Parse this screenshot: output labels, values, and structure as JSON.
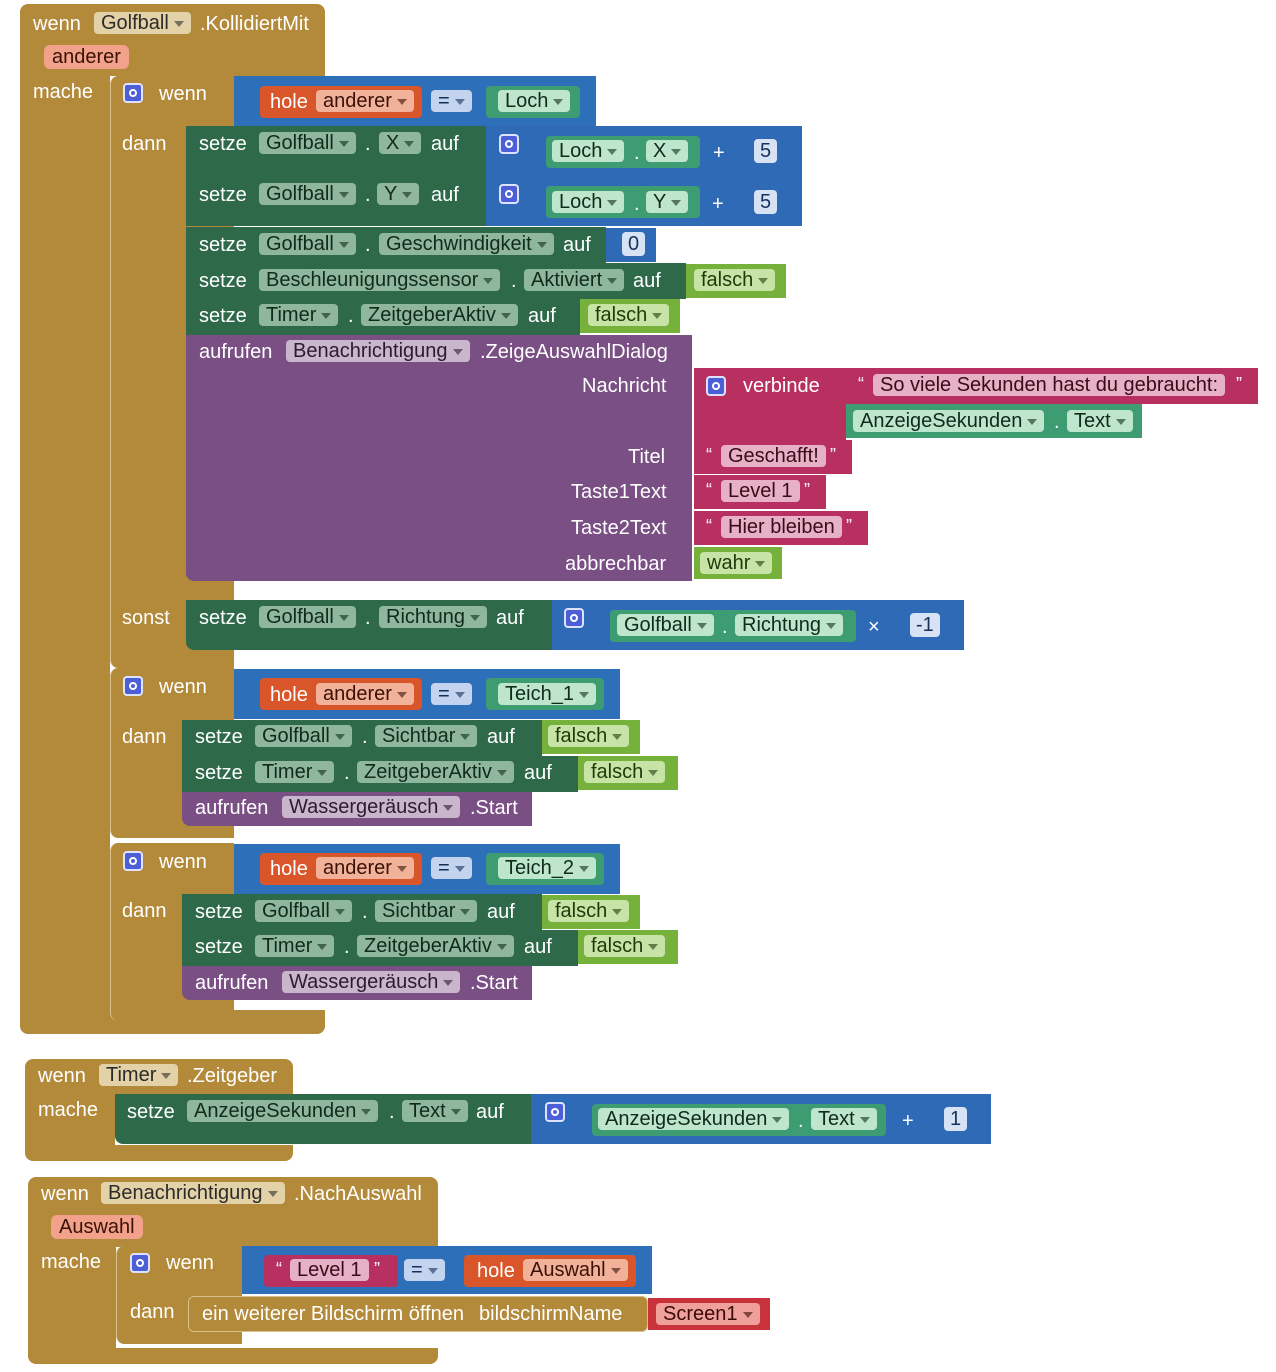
{
  "event1": {
    "wenn": "wenn",
    "component": "Golfball",
    "event": ".KollidiertMit",
    "param": "anderer",
    "mache": "mache",
    "if1": {
      "wenn": "wenn",
      "dann": "dann",
      "sonst": "sonst",
      "hole": "hole",
      "var": "anderer",
      "op": "=",
      "target": "Loch",
      "setX": {
        "setze": "setze",
        "comp": "Golfball",
        "dot": ".",
        "prop": "X",
        "auf": "auf",
        "getComp": "Loch",
        "getProp": "X",
        "plus": "+",
        "num": "5"
      },
      "setY": {
        "setze": "setze",
        "comp": "Golfball",
        "dot": ".",
        "prop": "Y",
        "auf": "auf",
        "getComp": "Loch",
        "getProp": "Y",
        "plus": "+",
        "num": "5"
      },
      "setSpeed": {
        "setze": "setze",
        "comp": "Golfball",
        "dot": ".",
        "prop": "Geschwindigkeit",
        "auf": "auf",
        "num": "0"
      },
      "setSensor": {
        "setze": "setze",
        "comp": "Beschleunigungssensor",
        "dot": ".",
        "prop": "Aktiviert",
        "auf": "auf",
        "value": "falsch"
      },
      "setTimer": {
        "setze": "setze",
        "comp": "Timer",
        "dot": ".",
        "prop": "ZeitgeberAktiv",
        "auf": "auf",
        "value": "falsch"
      },
      "call": {
        "aufrufen": "aufrufen",
        "comp": "Benachrichtigung",
        "method": ".ZeigeAuswahlDialog",
        "nachricht": "Nachricht",
        "verbinde": "verbinde",
        "text1": "So viele Sekunden hast du gebraucht:",
        "getComp": "AnzeigeSekunden",
        "getDot": ".",
        "getProp": "Text",
        "titel": "Titel",
        "titelVal": "Geschafft!",
        "taste1": "Taste1Text",
        "taste1Val": "Level 1",
        "taste2": "Taste2Text",
        "taste2Val": "Hier bleiben",
        "abbrechbar": "abbrechbar",
        "abbrechbarVal": "wahr"
      },
      "setRichtung": {
        "setze": "setze",
        "comp": "Golfball",
        "dot": ".",
        "prop": "Richtung",
        "auf": "auf",
        "getComp": "Golfball",
        "getProp": "Richtung",
        "times": "×",
        "num": "-1"
      }
    },
    "if2": {
      "wenn": "wenn",
      "dann": "dann",
      "hole": "hole",
      "var": "anderer",
      "op": "=",
      "target": "Teich_1",
      "setVis": {
        "setze": "setze",
        "comp": "Golfball",
        "dot": ".",
        "prop": "Sichtbar",
        "auf": "auf",
        "value": "falsch"
      },
      "setTimer": {
        "setze": "setze",
        "comp": "Timer",
        "dot": ".",
        "prop": "ZeitgeberAktiv",
        "auf": "auf",
        "value": "falsch"
      },
      "call": {
        "aufrufen": "aufrufen",
        "comp": "Wassergeräusch",
        "method": ".Start"
      }
    },
    "if3": {
      "wenn": "wenn",
      "dann": "dann",
      "hole": "hole",
      "var": "anderer",
      "op": "=",
      "target": "Teich_2",
      "setVis": {
        "setze": "setze",
        "comp": "Golfball",
        "dot": ".",
        "prop": "Sichtbar",
        "auf": "auf",
        "value": "falsch"
      },
      "setTimer": {
        "setze": "setze",
        "comp": "Timer",
        "dot": ".",
        "prop": "ZeitgeberAktiv",
        "auf": "auf",
        "value": "falsch"
      },
      "call": {
        "aufrufen": "aufrufen",
        "comp": "Wassergeräusch",
        "method": ".Start"
      }
    }
  },
  "event2": {
    "wenn": "wenn",
    "component": "Timer",
    "event": ".Zeitgeber",
    "mache": "mache",
    "set": {
      "setze": "setze",
      "comp": "AnzeigeSekunden",
      "dot": ".",
      "prop": "Text",
      "auf": "auf",
      "getComp": "AnzeigeSekunden",
      "getProp": "Text",
      "plus": "+",
      "num": "1"
    }
  },
  "event3": {
    "wenn": "wenn",
    "component": "Benachrichtigung",
    "event": ".NachAuswahl",
    "param": "Auswahl",
    "mache": "mache",
    "if": {
      "wenn": "wenn",
      "dann": "dann",
      "text": "Level 1",
      "op": "=",
      "hole": "hole",
      "var": "Auswahl",
      "open": "ein weiterer Bildschirm öffnen",
      "paramName": "bildschirmName",
      "screen": "Screen1"
    }
  },
  "colors": {
    "event": "#b38a3a",
    "control": "#2d6fb8",
    "setter": "#2e6a4a",
    "getter": "#3d9c71",
    "logic": "#76b23b",
    "text": "#b8305f",
    "call": "#7a4f84",
    "variable": "#d8562a",
    "math": "#2f6ab7"
  }
}
